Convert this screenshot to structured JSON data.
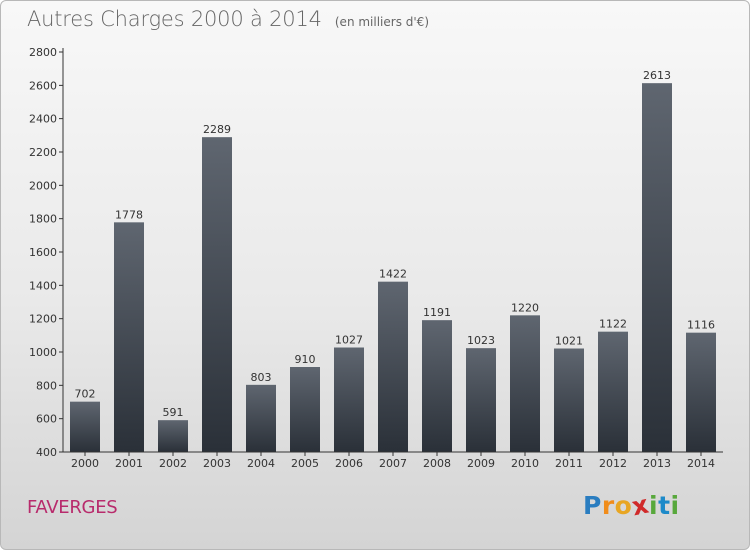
{
  "title": "Autres Charges 2000 à 2014",
  "subtitle": "(en milliers d'€)",
  "commune": "FAVERGES",
  "logo": {
    "letters": [
      "P",
      "r",
      "o",
      "x",
      "i",
      "t",
      "i"
    ],
    "colors": [
      "#2a7dc0",
      "#f08c1a",
      "#e8a623",
      "#d02a2a",
      "#58a83c",
      "#1d8ac9",
      "#58a83c"
    ]
  },
  "colors": {
    "bar_top": "#5f6670",
    "bar_bottom": "#2a3038",
    "axis": "#333333",
    "title": "#666666",
    "commune": "#b82b6c"
  },
  "chart_data": {
    "type": "bar",
    "title": "Autres Charges 2000 à 2014",
    "subtitle": "(en milliers d'€)",
    "categories": [
      "2000",
      "2001",
      "2002",
      "2003",
      "2004",
      "2005",
      "2006",
      "2007",
      "2008",
      "2009",
      "2010",
      "2011",
      "2012",
      "2013",
      "2014"
    ],
    "values": [
      702,
      1778,
      591,
      2289,
      803,
      910,
      1027,
      1422,
      1191,
      1023,
      1220,
      1021,
      1122,
      2613,
      1116
    ],
    "ylim": [
      400,
      2800
    ],
    "yticks": [
      400,
      600,
      800,
      1000,
      1200,
      1400,
      1600,
      1800,
      2000,
      2200,
      2400,
      2600,
      2800
    ],
    "xlabel": "",
    "ylabel": "",
    "grid": false,
    "legend": "none",
    "data_labels": true
  }
}
